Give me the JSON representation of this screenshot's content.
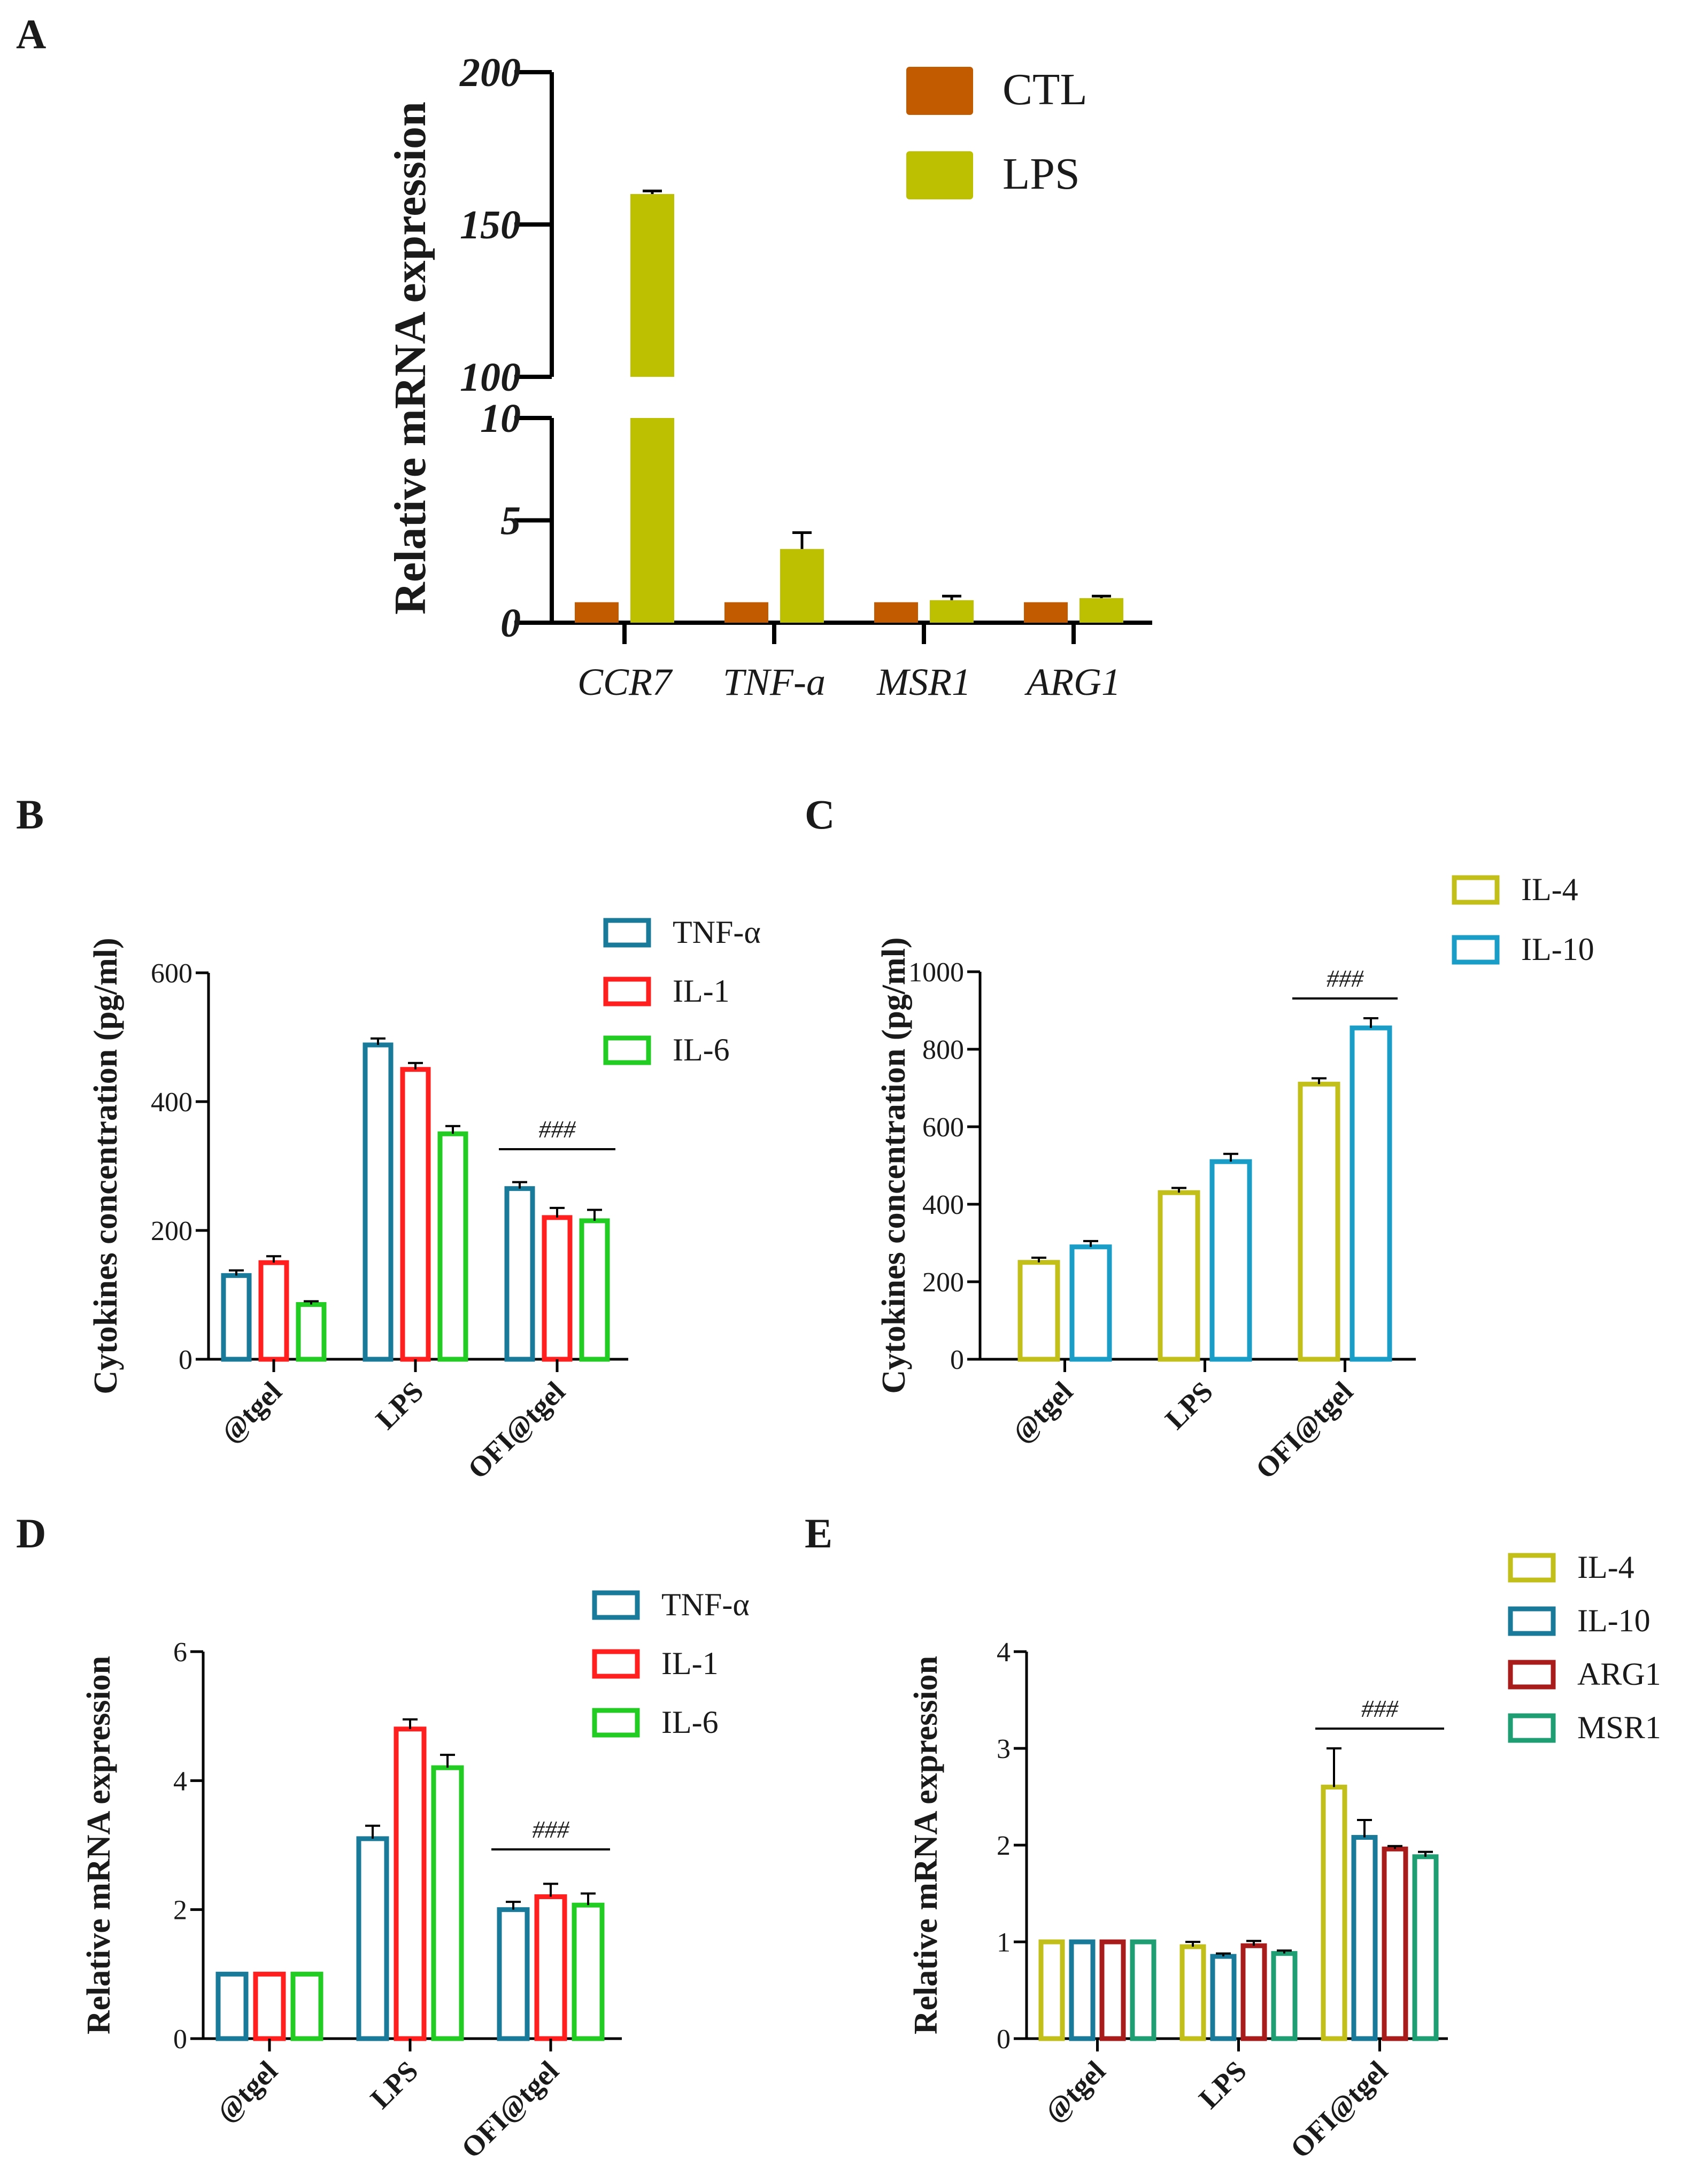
{
  "chart_data": [
    {
      "panel": "A",
      "type": "bar",
      "ylabel": "Relative mRNA expression",
      "xlabel": "",
      "y_axis_break": [
        10,
        100
      ],
      "ylim_lower": [
        0,
        10
      ],
      "ylim_upper": [
        100,
        200
      ],
      "yticks_lower": [
        "0",
        "5",
        "10"
      ],
      "yticks_upper": [
        "100",
        "150",
        "200"
      ],
      "categories": [
        "CCR7",
        "TNF-a",
        "MSR1",
        "ARG1"
      ],
      "series": [
        {
          "name": "CTL",
          "color": "#c25a00",
          "values": [
            1,
            1,
            1,
            1
          ],
          "errors": [
            0,
            0,
            0,
            0
          ]
        },
        {
          "name": "LPS",
          "color": "#bcc000",
          "values": [
            160,
            3.6,
            1.1,
            1.2
          ],
          "errors": [
            1,
            0.8,
            0.2,
            0.1
          ]
        }
      ],
      "legend_position": "top-right"
    },
    {
      "panel": "B",
      "type": "bar",
      "ylabel": "Cytokines concentration (pg/ml)",
      "ylim": [
        0,
        600
      ],
      "yticks": [
        "0",
        "200",
        "400",
        "600"
      ],
      "categories": [
        "@tgel",
        "LPS",
        "OFI@tgel"
      ],
      "series": [
        {
          "name": "TNF-α",
          "color": "#1a7a99",
          "values": [
            130,
            488,
            265
          ],
          "errors": [
            8,
            10,
            10
          ]
        },
        {
          "name": "IL-1",
          "color": "#ff1f1f",
          "values": [
            150,
            450,
            220
          ],
          "errors": [
            10,
            10,
            15
          ]
        },
        {
          "name": "IL-6",
          "color": "#22cc22",
          "values": [
            85,
            350,
            215
          ],
          "errors": [
            5,
            12,
            17
          ]
        }
      ],
      "annotation": {
        "text": "###",
        "group": "OFI@tgel"
      },
      "legend_position": "top-right"
    },
    {
      "panel": "C",
      "type": "bar",
      "ylabel": "Cytokines concentration (pg/ml)",
      "ylim": [
        0,
        1000
      ],
      "yticks": [
        "0",
        "200",
        "400",
        "600",
        "800",
        "1000"
      ],
      "categories": [
        "@tgel",
        "LPS",
        "OFI@tgel"
      ],
      "series": [
        {
          "name": "IL-4",
          "color": "#c2bf1a",
          "values": [
            250,
            430,
            710
          ],
          "errors": [
            12,
            12,
            15
          ]
        },
        {
          "name": "IL-10",
          "color": "#1a9ec7",
          "values": [
            290,
            510,
            855
          ],
          "errors": [
            15,
            20,
            25
          ]
        }
      ],
      "annotation": {
        "text": "###",
        "group": "OFI@tgel"
      },
      "legend_position": "top-right"
    },
    {
      "panel": "D",
      "type": "bar",
      "ylabel": "Relative mRNA expression",
      "ylim": [
        0,
        6
      ],
      "yticks": [
        "0",
        "2",
        "4",
        "6"
      ],
      "categories": [
        "@tgel",
        "LPS",
        "OFI@tgel"
      ],
      "series": [
        {
          "name": "TNF-α",
          "color": "#1a7a99",
          "values": [
            1,
            3.1,
            2.0
          ],
          "errors": [
            0,
            0.2,
            0.12
          ]
        },
        {
          "name": "IL-1",
          "color": "#ff1f1f",
          "values": [
            1,
            4.8,
            2.2
          ],
          "errors": [
            0,
            0.15,
            0.2
          ]
        },
        {
          "name": "IL-6",
          "color": "#22cc22",
          "values": [
            1,
            4.2,
            2.07
          ],
          "errors": [
            0,
            0.2,
            0.18
          ]
        }
      ],
      "annotation": {
        "text": "###",
        "group": "OFI@tgel"
      },
      "legend_position": "top-right"
    },
    {
      "panel": "E",
      "type": "bar",
      "ylabel": "Relative mRNA expression",
      "ylim": [
        0,
        4
      ],
      "yticks": [
        "0",
        "1",
        "2",
        "3",
        "4"
      ],
      "categories": [
        "@tgel",
        "LPS",
        "OFI@tgel"
      ],
      "series": [
        {
          "name": "IL-4",
          "color": "#c2bf1a",
          "values": [
            1,
            0.95,
            2.6
          ],
          "errors": [
            0,
            0.05,
            0.4
          ]
        },
        {
          "name": "IL-10",
          "color": "#1a7a99",
          "values": [
            1,
            0.85,
            2.08
          ],
          "errors": [
            0,
            0.03,
            0.18
          ]
        },
        {
          "name": "ARG1",
          "color": "#a81c1c",
          "values": [
            1,
            0.96,
            1.96
          ],
          "errors": [
            0,
            0.05,
            0.03
          ]
        },
        {
          "name": "MSR1",
          "color": "#1f9e74",
          "values": [
            1,
            0.88,
            1.88
          ],
          "errors": [
            0,
            0.03,
            0.05
          ]
        }
      ],
      "annotation": {
        "text": "###",
        "group": "OFI@tgel"
      },
      "legend_position": "top-right"
    }
  ]
}
